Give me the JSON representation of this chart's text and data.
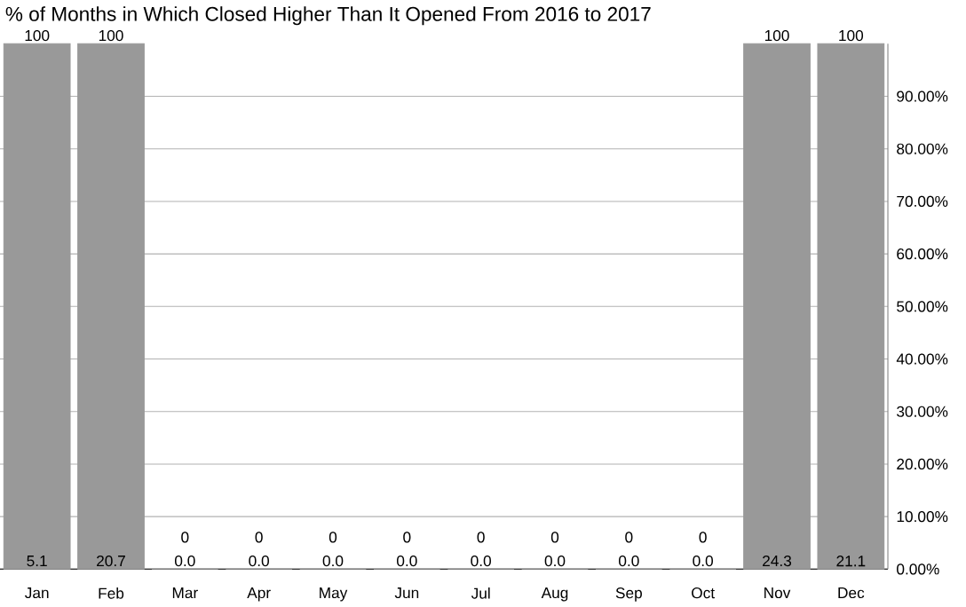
{
  "chart_data": {
    "type": "bar",
    "title": "% of Months in Which Closed Higher Than It Opened From 2016 to 2017",
    "categories": [
      "Jan",
      "Feb",
      "Mar",
      "Apr",
      "May",
      "Jun",
      "Jul",
      "Aug",
      "Sep",
      "Oct",
      "Nov",
      "Dec"
    ],
    "values": [
      100,
      100,
      0,
      0,
      0,
      0,
      0,
      0,
      0,
      0,
      100,
      100
    ],
    "color": "#999999",
    "data_labels": true,
    "annotations": [
      {
        "text": "5.1",
        "x": "Jan",
        "y": 0
      },
      {
        "text": "20.7",
        "x": "Feb",
        "y": 0
      },
      {
        "text": "0.0",
        "x": "Mar",
        "y": 0
      },
      {
        "text": "0.0",
        "x": "Apr",
        "y": 0
      },
      {
        "text": "0.0",
        "x": "May",
        "y": 0
      },
      {
        "text": "0.0",
        "x": "Jun",
        "y": 0
      },
      {
        "text": "0.0",
        "x": "Jul",
        "y": 0
      },
      {
        "text": "0.0",
        "x": "Aug",
        "y": 0
      },
      {
        "text": "0.0",
        "x": "Sep",
        "y": 0
      },
      {
        "text": "0.0",
        "x": "Oct",
        "y": 0
      },
      {
        "text": "24.3",
        "x": "Nov",
        "y": 0
      },
      {
        "text": "21.1",
        "x": "Dec",
        "y": 0
      }
    ],
    "ylim": [
      0,
      100
    ],
    "yticks": [
      {
        "value": 0,
        "label": "0.00%"
      },
      {
        "value": 10,
        "label": "10.00%"
      },
      {
        "value": 20,
        "label": "20.00%"
      },
      {
        "value": 30,
        "label": "30.00%"
      },
      {
        "value": 40,
        "label": "40.00%"
      },
      {
        "value": 50,
        "label": "50.00%"
      },
      {
        "value": 60,
        "label": "60.00%"
      },
      {
        "value": 70,
        "label": "70.00%"
      },
      {
        "value": 80,
        "label": "80.00%"
      },
      {
        "value": 90,
        "label": "90.00%"
      }
    ],
    "grid": "y"
  }
}
